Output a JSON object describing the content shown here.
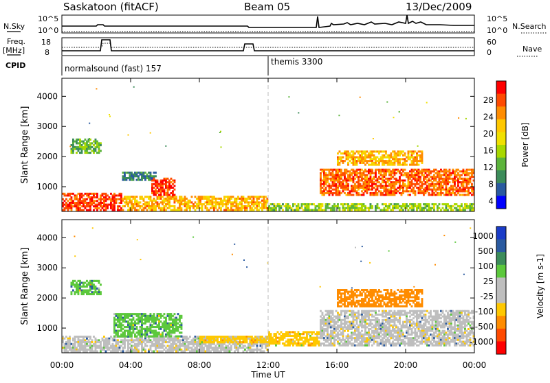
{
  "header": {
    "station": "Saskatoon (fitACF)",
    "beam": "Beam 05",
    "date": "13/Dec/2009"
  },
  "top_panels": {
    "nsky_label": "N.Sky",
    "nsearch_label": "N.Search",
    "freq_label_1": "Freq.",
    "freq_label_2": "[MHz]",
    "nave_label": "Nave",
    "cpid_label": "CPID",
    "left_tick_top": "10^5",
    "left_tick_bottom": "10^0",
    "right_tick_top": "10^5",
    "right_tick_bottom": "10^0",
    "freq_ticks": [
      "18",
      "8"
    ],
    "nave_ticks": [
      "60",
      "0"
    ],
    "cpid_1": "normalsound (fast) 157",
    "cpid_2": "themis 3300"
  },
  "axes": {
    "ylabel": "Slant Range [km]",
    "xlabel": "Time UT",
    "yticks": [
      "4000",
      "3000",
      "2000",
      "1000"
    ],
    "xticks": [
      "00:00",
      "04:00",
      "08:00",
      "12:00",
      "16:00",
      "20:00",
      "00:00"
    ]
  },
  "power_colorbar": {
    "label": "Power [dB]",
    "ticks": [
      "28",
      "24",
      "20",
      "16",
      "12",
      "8",
      "4"
    ],
    "colors": [
      "#ff0000",
      "#ff4a00",
      "#ff8c00",
      "#ffc800",
      "#f0e000",
      "#a8d800",
      "#5cb43c",
      "#3c8c5a",
      "#2a5aa0",
      "#0000ff"
    ]
  },
  "velocity_colorbar": {
    "label": "Velocity [m s-1]",
    "ticks": [
      "1000",
      "500",
      "100",
      "25",
      "-25",
      "-100",
      "-500",
      "-1000"
    ],
    "colors": [
      "#1a3cc8",
      "#2a5aa0",
      "#3c8c5a",
      "#5cc83c",
      "#bebebe",
      "#bebebe",
      "#ffc800",
      "#ff8c00",
      "#ff4a00",
      "#ff0000"
    ]
  },
  "chart_data": [
    {
      "type": "heatmap",
      "title": "Power",
      "xlabel": "Time UT",
      "ylabel": "Slant Range [km]",
      "xlim": [
        0,
        24
      ],
      "ylim": [
        180,
        4600
      ],
      "colorbar_label": "Power [dB]",
      "regions": [
        {
          "t0": 0.0,
          "t1": 3.5,
          "r0": 200,
          "r1": 800,
          "value": 28
        },
        {
          "t0": 3.5,
          "t1": 12.0,
          "r0": 200,
          "r1": 700,
          "value": 22
        },
        {
          "t0": 0.5,
          "t1": 2.3,
          "r0": 2100,
          "r1": 2600,
          "value": 12
        },
        {
          "t0": 3.5,
          "t1": 5.5,
          "r0": 1200,
          "r1": 1500,
          "value": 8
        },
        {
          "t0": 5.2,
          "t1": 6.6,
          "r0": 700,
          "r1": 1300,
          "value": 28
        },
        {
          "t0": 15.0,
          "t1": 24.0,
          "r0": 700,
          "r1": 1600,
          "value": 26
        },
        {
          "t0": 16.0,
          "t1": 21.0,
          "r0": 1700,
          "r1": 2200,
          "value": 22
        },
        {
          "t0": 12.0,
          "t1": 24.0,
          "r0": 200,
          "r1": 450,
          "value": 14
        }
      ]
    },
    {
      "type": "heatmap",
      "title": "Velocity",
      "xlabel": "Time UT",
      "ylabel": "Slant Range [km]",
      "xlim": [
        0,
        24
      ],
      "ylim": [
        180,
        4600
      ],
      "colorbar_label": "Velocity [m s-1]",
      "regions": [
        {
          "t0": 0.0,
          "t1": 12.0,
          "r0": 200,
          "r1": 750,
          "value": 0
        },
        {
          "t0": 8.0,
          "t1": 12.0,
          "r0": 500,
          "r1": 750,
          "value": -100
        },
        {
          "t0": 0.5,
          "t1": 2.3,
          "r0": 2100,
          "r1": 2600,
          "value": 100
        },
        {
          "t0": 3.0,
          "t1": 7.0,
          "r0": 700,
          "r1": 1500,
          "value": 100
        },
        {
          "t0": 12.0,
          "t1": 15.0,
          "r0": 400,
          "r1": 900,
          "value": -100
        },
        {
          "t0": 15.0,
          "t1": 24.0,
          "r0": 400,
          "r1": 1600,
          "value": 0
        },
        {
          "t0": 16.0,
          "t1": 21.0,
          "r0": 1700,
          "r1": 2300,
          "value": -300
        }
      ]
    }
  ]
}
